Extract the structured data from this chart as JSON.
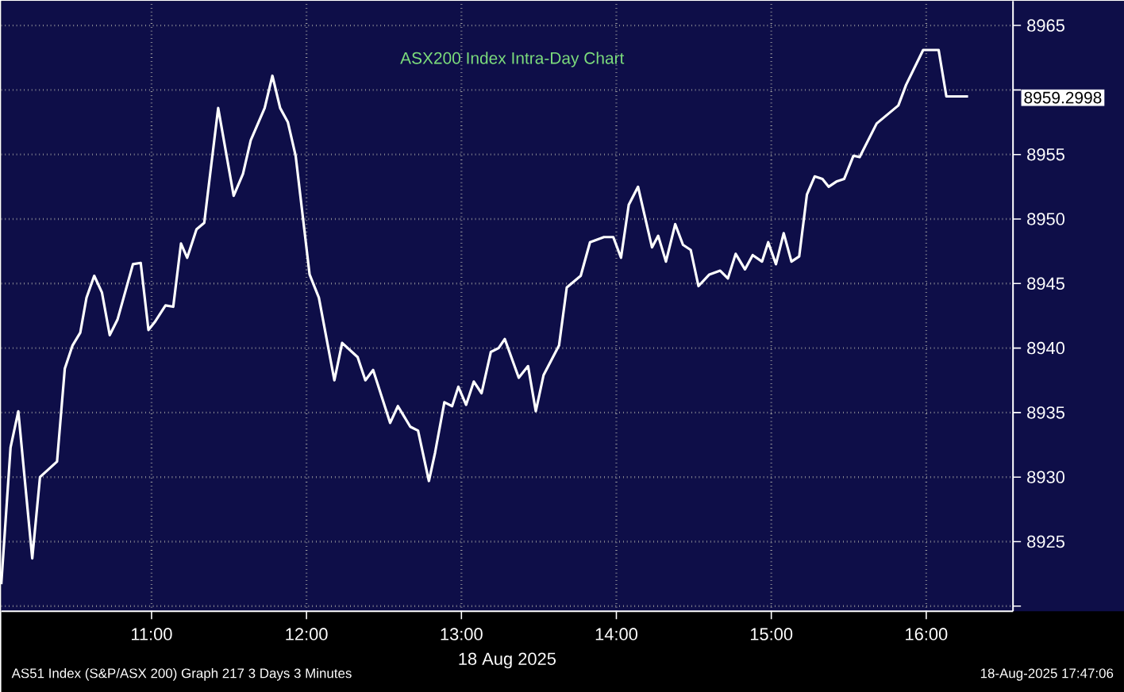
{
  "chart_data": {
    "type": "line",
    "title": "ASX200 Index Intra-Day Chart",
    "xlabel": "18 Aug 2025",
    "annotations": [
      "AS51 Index (S&P/ASX 200) Graph 217 3 Days 3 Minutes",
      "8959.2998",
      "18-Aug-2025 17:47:06"
    ],
    "x": [
      10.03,
      10.09,
      10.14,
      10.23,
      10.28,
      10.39,
      10.44,
      10.49,
      10.54,
      10.58,
      10.63,
      10.68,
      10.73,
      10.78,
      10.88,
      10.93,
      10.98,
      11.02,
      11.09,
      11.14,
      11.19,
      11.23,
      11.29,
      11.34,
      11.43,
      11.53,
      11.59,
      11.64,
      11.73,
      11.78,
      11.83,
      11.88,
      11.93,
      12.02,
      12.08,
      12.18,
      12.23,
      12.33,
      12.38,
      12.43,
      12.54,
      12.59,
      12.67,
      12.72,
      12.79,
      12.83,
      12.89,
      12.94,
      12.98,
      13.03,
      13.08,
      13.13,
      13.19,
      13.24,
      13.28,
      13.37,
      13.43,
      13.48,
      13.53,
      13.63,
      13.68,
      13.77,
      13.83,
      13.92,
      13.98,
      14.03,
      14.08,
      14.14,
      14.18,
      14.23,
      14.27,
      14.32,
      14.38,
      14.43,
      14.48,
      14.53,
      14.6,
      14.67,
      14.72,
      14.77,
      14.83,
      14.88,
      14.94,
      14.98,
      15.03,
      15.08,
      15.13,
      15.18,
      15.23,
      15.28,
      15.33,
      15.37,
      15.42,
      15.47,
      15.53,
      15.57,
      15.68,
      15.76,
      15.82,
      15.87,
      15.98,
      16.08,
      16.13,
      16.27
    ],
    "series": [
      {
        "color": "#ffffff",
        "values": [
          8921.7,
          8932.3,
          8935.1,
          8923.7,
          8930.0,
          8931.2,
          8938.4,
          8940.2,
          8941.2,
          8943.9,
          8945.6,
          8944.3,
          8941.0,
          8942.2,
          8946.5,
          8946.6,
          8941.4,
          8942.0,
          8943.3,
          8943.2,
          8948.1,
          8947.0,
          8949.2,
          8949.7,
          8958.6,
          8951.8,
          8953.5,
          8956.1,
          8958.6,
          8961.1,
          8958.6,
          8957.5,
          8954.9,
          8945.7,
          8943.9,
          8937.5,
          8940.4,
          8939.3,
          8937.5,
          8938.3,
          8934.2,
          8935.5,
          8933.9,
          8933.6,
          8929.7,
          8931.9,
          8935.8,
          8935.5,
          8937.0,
          8935.6,
          8937.4,
          8936.5,
          8939.7,
          8940.0,
          8940.7,
          8937.7,
          8938.6,
          8935.1,
          8937.9,
          8940.2,
          8944.7,
          8945.6,
          8948.2,
          8948.6,
          8948.6,
          8947.0,
          8951.1,
          8952.5,
          8950.4,
          8947.8,
          8948.7,
          8946.7,
          8949.6,
          8948.0,
          8947.6,
          8944.8,
          8945.7,
          8946.0,
          8945.4,
          8947.3,
          8946.1,
          8947.2,
          8946.7,
          8948.2,
          8946.5,
          8948.9,
          8946.7,
          8947.1,
          8951.9,
          8953.3,
          8953.1,
          8952.5,
          8952.9,
          8953.1,
          8954.9,
          8954.8,
          8957.4,
          8958.2,
          8958.8,
          8960.4,
          8963.1,
          8963.1,
          8959.5,
          8959.5
        ]
      }
    ],
    "xlim": [
      10.03,
      16.56
    ],
    "ylim": [
      8919.6,
      8966.9
    ],
    "xticks": [
      {
        "value": 11,
        "label": "11:00"
      },
      {
        "value": 12,
        "label": "12:00"
      },
      {
        "value": 13,
        "label": "13:00"
      },
      {
        "value": 14,
        "label": "14:00"
      },
      {
        "value": 15,
        "label": "15:00"
      },
      {
        "value": 16,
        "label": "16:00"
      }
    ],
    "yticks": [
      {
        "value": 8920,
        "label": null
      },
      8925,
      8930,
      8935,
      8940,
      8945,
      8950,
      8955,
      {
        "value": 8960,
        "label": null
      },
      8965
    ],
    "grid": true
  }
}
